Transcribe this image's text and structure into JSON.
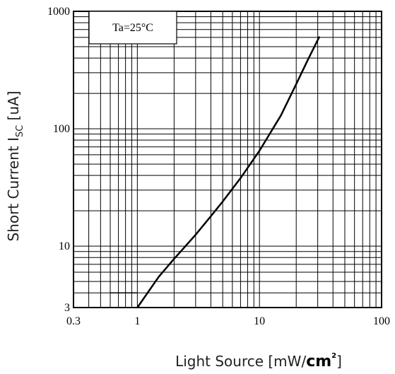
{
  "chart_data": {
    "type": "line",
    "title": "",
    "xscale": "log",
    "yscale": "log",
    "xlim": [
      0.3,
      100
    ],
    "ylim": [
      3,
      1000
    ],
    "x_ticks": [
      "0.3",
      "1",
      "10",
      "100"
    ],
    "y_ticks": [
      "3",
      "10",
      "100",
      "1000"
    ],
    "xlabel": "Light Source [mW/",
    "xlabel_unit": "cm",
    "xlabel_sup": "2",
    "xlabel_end": "]",
    "ylabel": "Short Current I",
    "ylabel_sub": "SC",
    "ylabel_end": " [uA]",
    "annotation": "Ta=25°C",
    "grid": true,
    "series": [
      {
        "x": [
          1.0,
          1.5,
          2.0,
          3.0,
          4.0,
          5.0,
          7.0,
          10.0,
          15.0,
          20.0,
          25.0,
          31.0
        ],
        "y": [
          3.0,
          5.5,
          7.8,
          12.5,
          18.0,
          24.0,
          38.0,
          65.0,
          130.0,
          240.0,
          390.0,
          610.0
        ]
      }
    ],
    "marker_segment": {
      "x": [
        0.6,
        1.0
      ],
      "y": [
        4.0,
        4.0
      ]
    }
  }
}
